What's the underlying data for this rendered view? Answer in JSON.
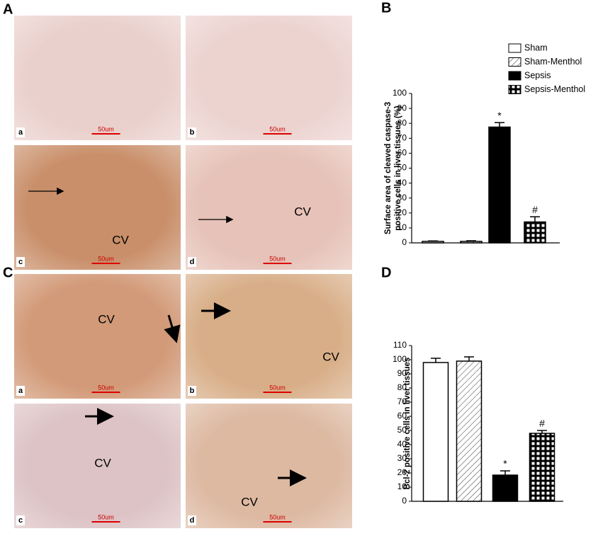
{
  "micrographs": [
    {
      "label": "A",
      "images": [
        {
          "label": "a",
          "scale": "50um"
        },
        {
          "label": "b",
          "scale": "50um"
        },
        {
          "label": "c",
          "scale": "50um",
          "cv": "CV"
        },
        {
          "label": "d",
          "scale": "50um",
          "cv": "CV"
        }
      ]
    },
    {
      "label": "C",
      "images": [
        {
          "label": "a",
          "scale": "50um",
          "cv": "CV"
        },
        {
          "label": "b",
          "scale": "50um",
          "cv": "CV"
        },
        {
          "label": "c",
          "scale": "50um",
          "cv": "CV"
        },
        {
          "label": "d",
          "scale": "50um",
          "cv": "CV"
        }
      ]
    }
  ],
  "chart_data": [
    {
      "type": "bar",
      "panel": "B",
      "y_label": [
        "Surface area of cleaved caspase-3",
        "positive cells in liver tissues (%)"
      ],
      "ylim": [
        0,
        100
      ],
      "yticks": [
        0,
        10,
        20,
        30,
        40,
        50,
        60,
        70,
        80,
        90,
        100
      ],
      "legend": "top-right",
      "series": [
        {
          "name": "Sham",
          "color": "#ffffff",
          "pattern": "none",
          "values": [
            1
          ],
          "errors": [
            0.3
          ]
        },
        {
          "name": "Sham-Menthol",
          "color": "#ffffff",
          "pattern": "hatch",
          "values": [
            1
          ],
          "errors": [
            0.4
          ]
        },
        {
          "name": "Sepsis",
          "color": "#000000",
          "pattern": "none",
          "values": [
            77.5
          ],
          "errors": [
            3
          ],
          "annotation": "*"
        },
        {
          "name": "Sepsis-Menthol",
          "color": "#000000",
          "pattern": "grid",
          "values": [
            14
          ],
          "errors": [
            3.5
          ],
          "annotation": "#"
        }
      ]
    },
    {
      "type": "bar",
      "panel": "D",
      "y_label": [
        "Bcl-2 positive cells in liver tissues"
      ],
      "ylim": [
        0,
        110
      ],
      "yticks": [
        0,
        10,
        20,
        30,
        40,
        50,
        60,
        70,
        80,
        90,
        100,
        110
      ],
      "legend": "none",
      "series": [
        {
          "color": "#ffffff",
          "pattern": "none",
          "values": [
            98
          ],
          "errors": [
            3
          ]
        },
        {
          "color": "#ffffff",
          "pattern": "hatch",
          "values": [
            99
          ],
          "errors": [
            3
          ]
        },
        {
          "color": "#000000",
          "pattern": "none",
          "values": [
            18.5
          ],
          "errors": [
            3
          ],
          "annotation": "*"
        },
        {
          "color": "#000000",
          "pattern": "grid",
          "values": [
            48
          ],
          "errors": [
            2
          ],
          "annotation": "#"
        }
      ]
    }
  ]
}
